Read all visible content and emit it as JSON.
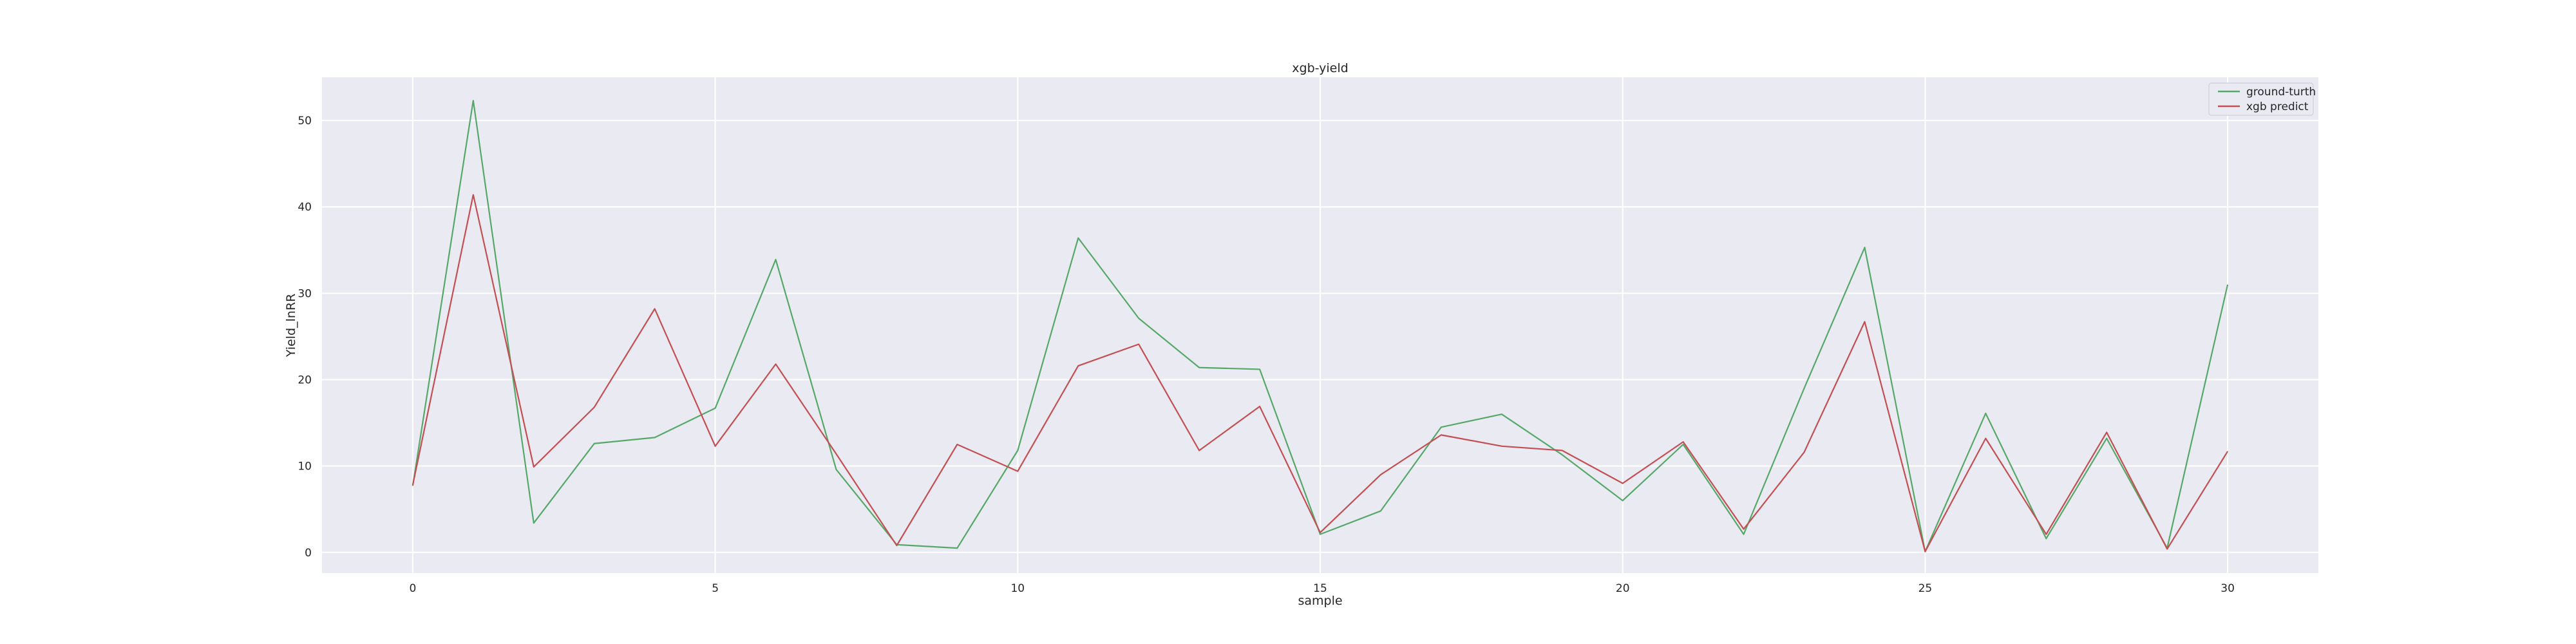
{
  "chart_data": {
    "type": "line",
    "title": "xgb-yield",
    "xlabel": "sample",
    "ylabel": "Yield_lnRR",
    "xlim": [
      -1.5,
      31.5
    ],
    "ylim": [
      -2.4,
      55.0
    ],
    "xticks": [
      0,
      5,
      10,
      15,
      20,
      25,
      30
    ],
    "yticks": [
      0,
      10,
      20,
      30,
      40,
      50
    ],
    "grid": true,
    "background_color": "#EAEAF2",
    "legend_position": "top-right",
    "x": [
      0,
      1,
      2,
      3,
      4,
      5,
      6,
      7,
      8,
      9,
      10,
      11,
      12,
      13,
      14,
      15,
      16,
      17,
      18,
      19,
      20,
      21,
      22,
      23,
      24,
      25,
      26,
      27,
      28,
      29,
      30
    ],
    "series": [
      {
        "name": "ground-turth",
        "color": "#55A868",
        "values": [
          7.7,
          52.3,
          3.4,
          12.6,
          13.3,
          16.7,
          33.9,
          9.6,
          0.9,
          0.5,
          11.8,
          36.4,
          27.1,
          21.4,
          21.2,
          2.1,
          4.8,
          14.5,
          16.0,
          11.3,
          6.0,
          12.5,
          2.1,
          19.0,
          35.3,
          0.1,
          16.1,
          1.6,
          13.2,
          0.5,
          31.0
        ]
      },
      {
        "name": "xgb predict",
        "color": "#C44E52",
        "values": [
          7.8,
          41.4,
          9.9,
          16.8,
          28.2,
          12.3,
          21.8,
          11.4,
          0.8,
          12.5,
          9.4,
          21.6,
          24.1,
          11.8,
          16.9,
          2.3,
          9.0,
          13.6,
          12.3,
          11.8,
          8.0,
          12.8,
          2.7,
          11.6,
          26.7,
          0.1,
          13.2,
          2.1,
          13.9,
          0.4,
          11.7
        ]
      }
    ]
  }
}
